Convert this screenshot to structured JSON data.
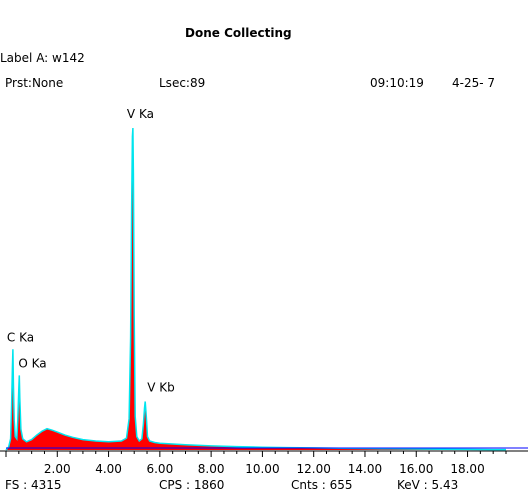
{
  "header": {
    "status": "Done Collecting",
    "label": "Label A: w142",
    "preset": "Prst:None",
    "lsec": "Lsec:89",
    "time": "09:10:19",
    "date": "4-25- 7"
  },
  "footer": {
    "fs": "FS : 4315",
    "cps": "CPS : 1860",
    "cnts": "Cnts : 655",
    "kev": "KeV : 5.43"
  },
  "colors": {
    "fill": "#ff0000",
    "outline": "#00e5ee",
    "baseline": "#0000ff",
    "background": "#ffffff"
  },
  "chart_data": {
    "type": "area",
    "title": "",
    "xlabel": "",
    "ylabel": "",
    "xlim": [
      0,
      19.5
    ],
    "ylim": [
      0,
      4315
    ],
    "x_ticks": [
      2,
      4,
      6,
      8,
      10,
      12,
      14,
      16,
      18
    ],
    "x_tick_labels": [
      "2.00",
      "4.00",
      "6.00",
      "8.00",
      "10.00",
      "12.00",
      "14.00",
      "16.00",
      "18.00"
    ],
    "grid": false,
    "peaks": [
      {
        "label": "C Ka",
        "x": 0.27,
        "y": 1350
      },
      {
        "label": "O Ka",
        "x": 0.52,
        "y": 1000
      },
      {
        "label": "V Ka",
        "x": 4.95,
        "y": 4315
      },
      {
        "label": "V Kb",
        "x": 5.43,
        "y": 650
      }
    ],
    "series": [
      {
        "x": [
          0,
          0.1,
          0.18,
          0.22,
          0.25,
          0.27,
          0.29,
          0.32,
          0.36,
          0.42,
          0.46,
          0.5,
          0.52,
          0.54,
          0.58,
          0.65,
          0.8,
          1.0,
          1.2,
          1.4,
          1.6,
          1.8,
          2.0,
          2.3,
          2.6,
          3.0,
          3.5,
          4.0,
          4.5,
          4.7,
          4.8,
          4.86,
          4.9,
          4.93,
          4.95,
          4.97,
          5.0,
          5.04,
          5.1,
          5.2,
          5.3,
          5.36,
          5.4,
          5.43,
          5.47,
          5.52,
          5.6,
          5.8,
          6.0,
          7.0,
          8.0,
          9.0,
          10.0,
          11.0,
          12.0,
          13.0,
          14.0,
          15.0,
          16.0,
          17.0,
          18.0,
          19.0,
          19.5
        ],
        "y": [
          0,
          40,
          150,
          600,
          1100,
          1350,
          900,
          400,
          180,
          150,
          400,
          820,
          1000,
          700,
          280,
          150,
          110,
          140,
          200,
          250,
          285,
          265,
          240,
          200,
          170,
          140,
          120,
          110,
          120,
          160,
          420,
          1500,
          3200,
          4200,
          4315,
          3700,
          1800,
          450,
          180,
          120,
          150,
          350,
          560,
          650,
          450,
          180,
          120,
          100,
          90,
          70,
          55,
          45,
          38,
          32,
          28,
          24,
          20,
          16,
          13,
          10,
          8,
          6,
          5
        ]
      }
    ]
  }
}
